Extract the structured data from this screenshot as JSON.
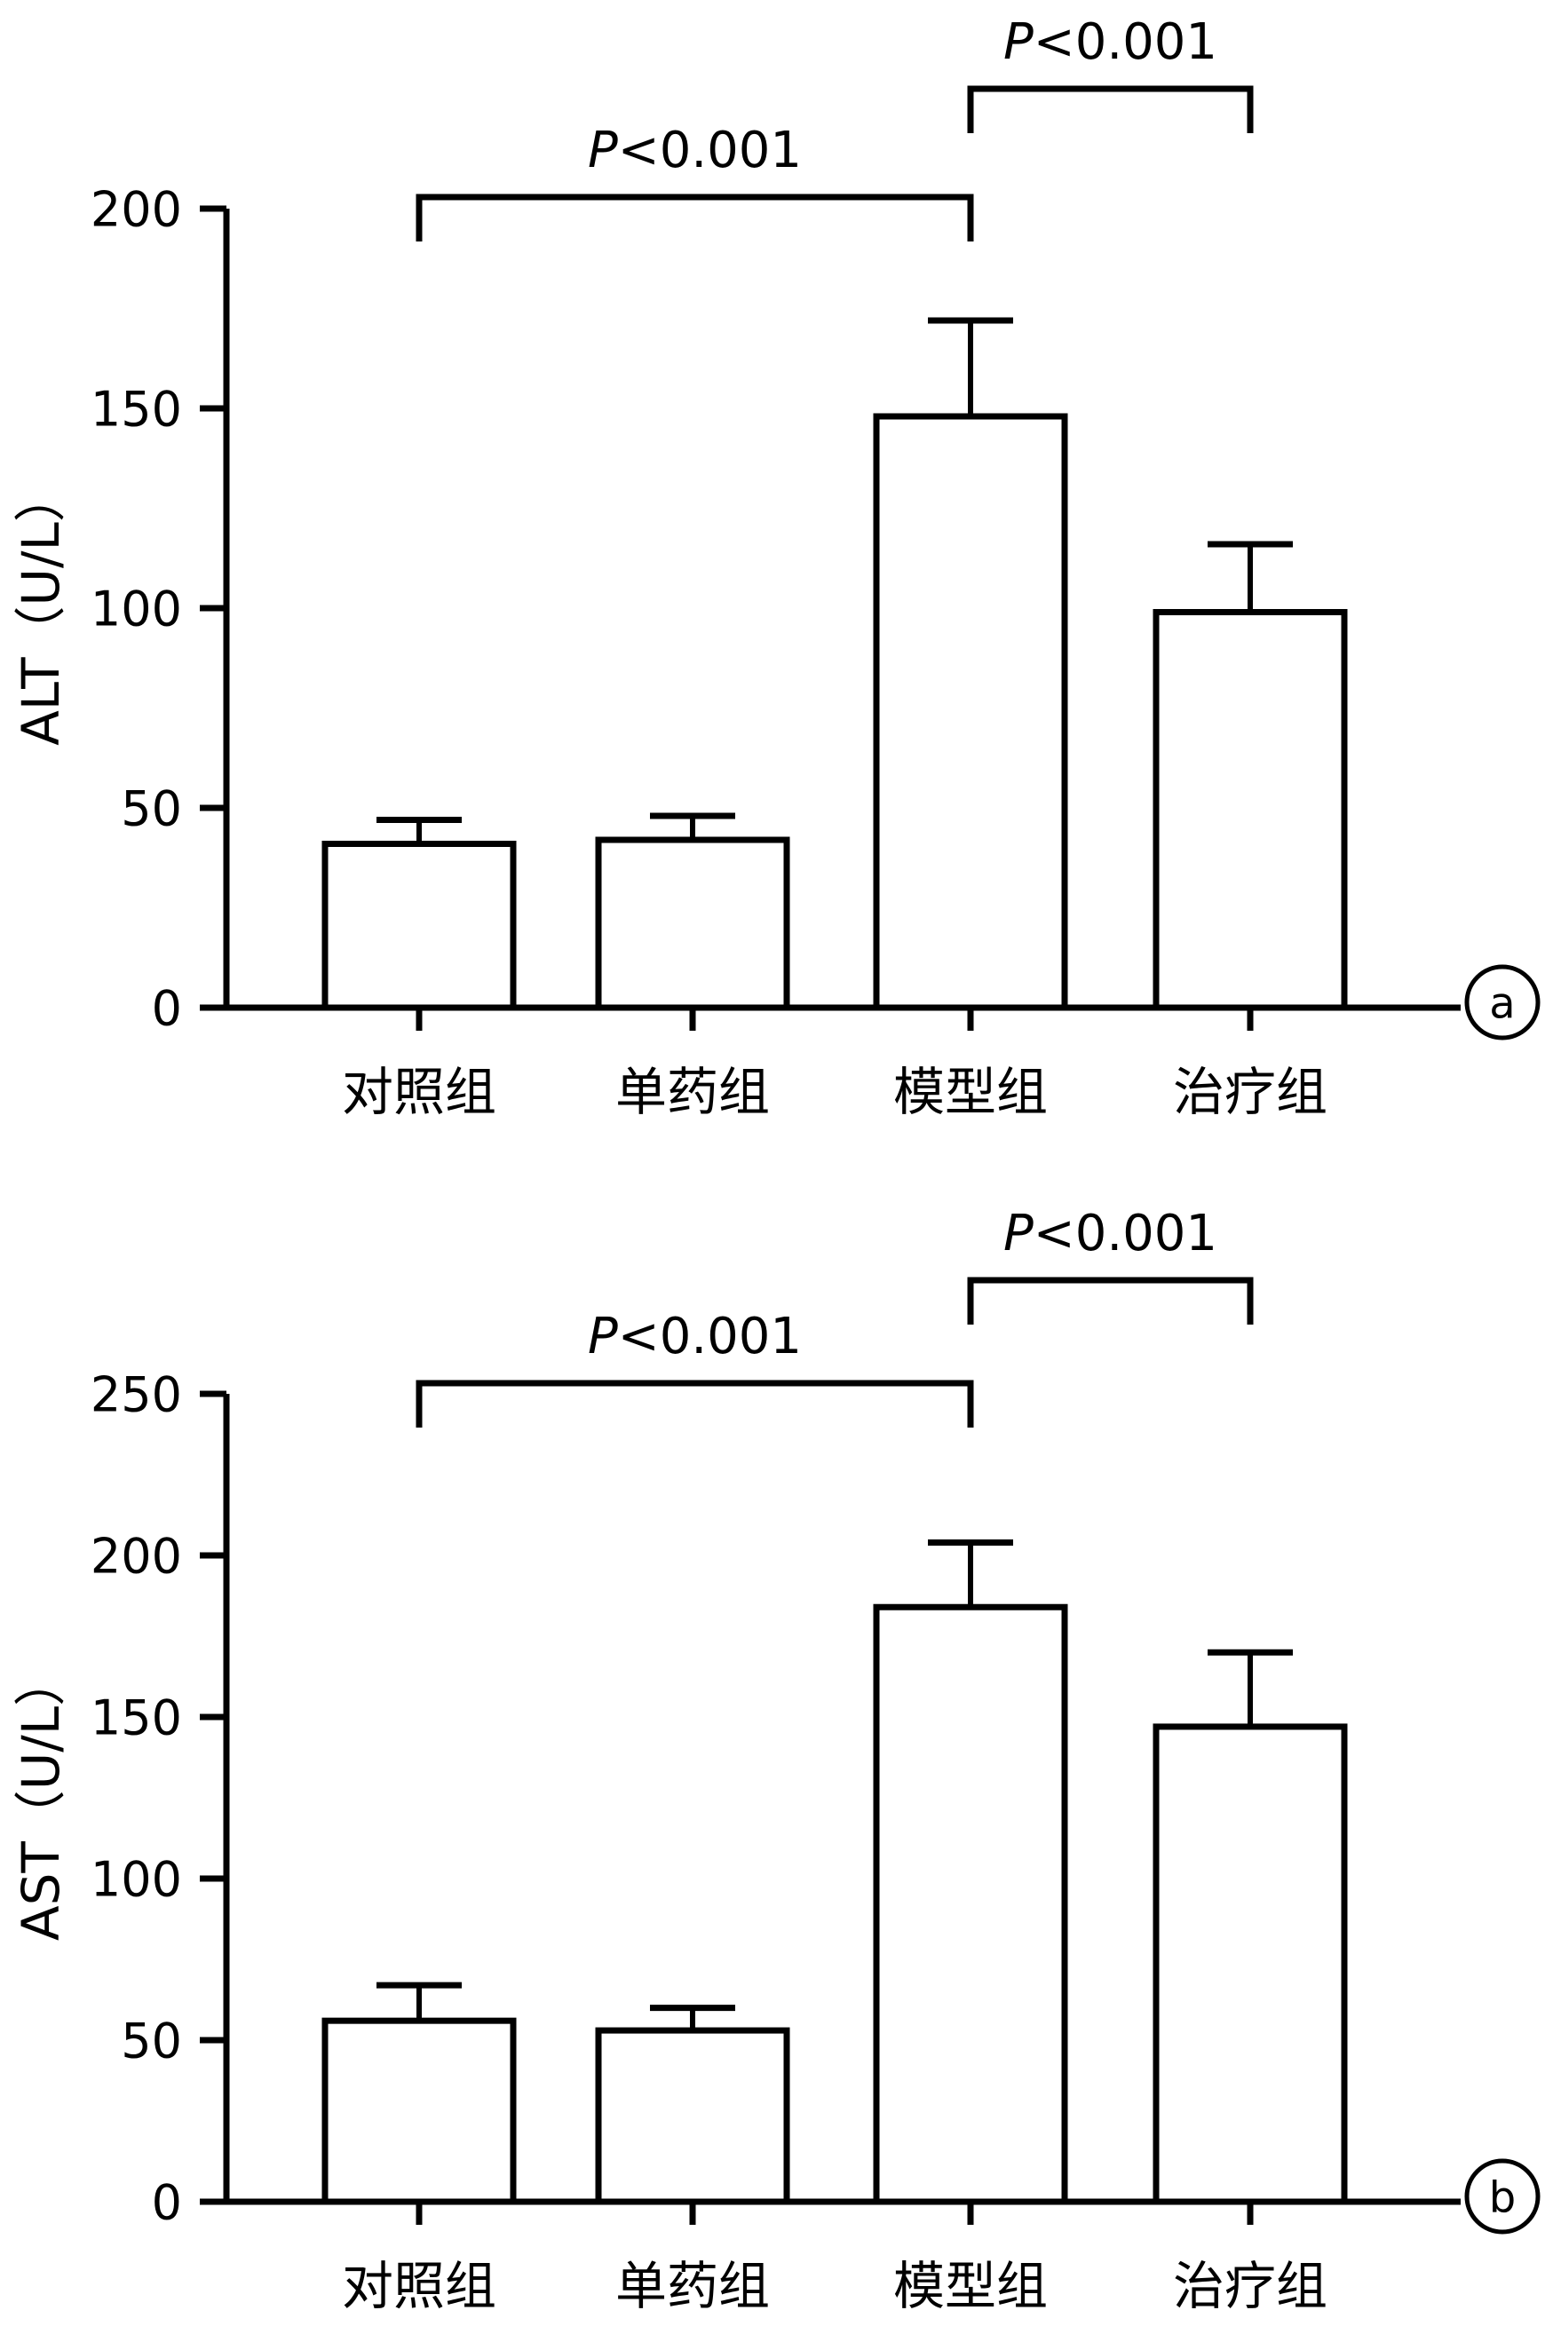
{
  "figure": {
    "background": "#ffffff",
    "ink_color": "#000000"
  },
  "chart_data": [
    {
      "type": "bar",
      "panel_label": "a",
      "title": "",
      "xlabel": "",
      "ylabel": "ALT（U/L）",
      "categories": [
        "对照组",
        "单药组",
        "模型组",
        "治疗组"
      ],
      "values": [
        41,
        42,
        148,
        99
      ],
      "errors_upper": [
        6,
        6,
        24,
        17
      ],
      "ylim": [
        0,
        200
      ],
      "yticks": [
        0,
        50,
        100,
        150,
        200
      ],
      "bar_fill": "#ffffff",
      "bar_stroke": "#000000",
      "grid": false,
      "legend": false,
      "significance_brackets": [
        {
          "from_index": 0,
          "to_index": 2,
          "label": "P<0.001"
        },
        {
          "from_index": 2,
          "to_index": 3,
          "label": "P<0.001"
        }
      ]
    },
    {
      "type": "bar",
      "panel_label": "b",
      "title": "",
      "xlabel": "",
      "ylabel": "AST（U/L）",
      "categories": [
        "对照组",
        "单药组",
        "模型组",
        "治疗组"
      ],
      "values": [
        56,
        53,
        184,
        147
      ],
      "errors_upper": [
        11,
        7,
        20,
        23
      ],
      "ylim": [
        0,
        250
      ],
      "yticks": [
        0,
        50,
        100,
        150,
        200,
        250
      ],
      "bar_fill": "#ffffff",
      "bar_stroke": "#000000",
      "grid": false,
      "legend": false,
      "significance_brackets": [
        {
          "from_index": 0,
          "to_index": 2,
          "label": "P<0.001"
        },
        {
          "from_index": 2,
          "to_index": 3,
          "label": "P<0.001"
        }
      ]
    }
  ]
}
